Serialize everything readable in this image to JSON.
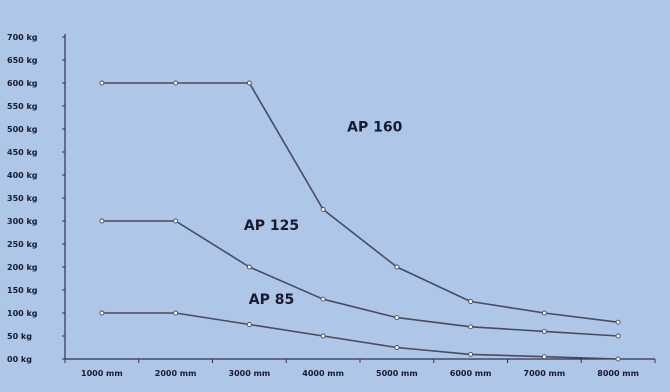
{
  "colors": {
    "background": "#aec6e8",
    "axis": "#33334d",
    "line": "#4a4a60",
    "marker_fill": "#ffffff",
    "marker_stroke": "#4a4a60",
    "text": "#1a1a2e"
  },
  "chart_data": {
    "type": "line",
    "title": "",
    "xlabel": "",
    "ylabel": "",
    "x": [
      "1000 mm",
      "2000 mm",
      "3000 mm",
      "4000 mm",
      "5000 mm",
      "6000 mm",
      "7000 mm",
      "8000 mm"
    ],
    "y_ticks": [
      "00 kg",
      "50 kg",
      "100 kg",
      "150 kg",
      "200 kg",
      "250 kg",
      "300 kg",
      "350 kg",
      "400 kg",
      "450 kg",
      "500 kg",
      "550 kg",
      "600 kg",
      "650 kg",
      "700 kg"
    ],
    "ylim": [
      0,
      700
    ],
    "grid": false,
    "series": [
      {
        "name": "AP 160",
        "values": [
          600,
          600,
          600,
          325,
          200,
          125,
          100,
          80
        ]
      },
      {
        "name": "AP 125",
        "values": [
          300,
          300,
          200,
          130,
          90,
          70,
          60,
          50
        ]
      },
      {
        "name": "AP 85",
        "values": [
          100,
          100,
          75,
          50,
          25,
          10,
          5,
          0
        ]
      }
    ]
  }
}
